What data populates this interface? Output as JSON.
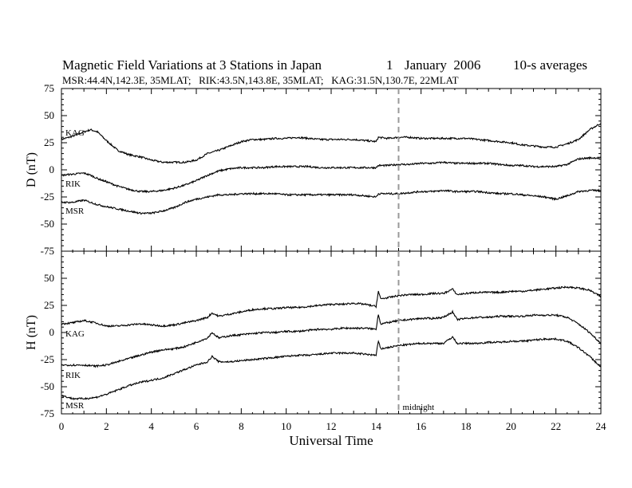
{
  "header": {
    "title": "Magnetic Field Variations at 3 Stations in Japan",
    "date_day": "1",
    "date_month_year": "January  2006",
    "averaging": "10-s averages",
    "stations_line": "MSR:44.4N,142.3E, 35MLAT;   RIK:43.5N,143.8E, 35MLAT;   KAG:31.5N,130.7E, 22MLAT"
  },
  "chart_data": [
    {
      "type": "line",
      "panel": "top",
      "ylabel": "D (nT)",
      "xlim": [
        0,
        24
      ],
      "ylim": [
        -75,
        75
      ],
      "yticks": [
        75,
        50,
        25,
        0,
        -25,
        -50,
        -75
      ],
      "x": [
        0,
        0.5,
        1,
        1.3,
        1.6,
        2,
        2.5,
        3,
        3.5,
        4,
        4.5,
        5,
        5.5,
        6,
        6.5,
        7,
        7.5,
        8,
        8.5,
        9,
        9.5,
        10,
        10.5,
        11,
        11.5,
        12,
        12.5,
        13,
        13.5,
        14,
        14.1,
        14.5,
        15,
        15.5,
        16,
        16.5,
        17,
        17.5,
        18,
        18.5,
        19,
        19.5,
        20,
        20.5,
        21,
        21.5,
        22,
        22.5,
        23,
        23.5,
        24
      ],
      "series": [
        {
          "name": "KAG",
          "values": [
            28,
            31,
            35,
            37,
            35,
            27,
            18,
            14,
            12,
            9,
            7,
            7,
            7,
            9,
            15,
            18,
            22,
            26,
            28,
            28,
            29,
            29,
            30,
            29,
            28,
            28,
            28,
            28,
            27,
            26,
            30,
            29,
            30,
            30,
            29,
            29,
            29,
            29,
            29,
            28,
            27,
            26,
            25,
            23,
            22,
            21,
            21,
            24,
            28,
            37,
            43
          ]
        },
        {
          "name": "RIK",
          "values": [
            -5,
            -4,
            -3,
            -5,
            -8,
            -11,
            -15,
            -18,
            -20,
            -20,
            -19,
            -17,
            -14,
            -10,
            -5,
            -1,
            1,
            2,
            2,
            2,
            3,
            3,
            3,
            3,
            2,
            2,
            2,
            2,
            2,
            2,
            4,
            4,
            5,
            5,
            6,
            6,
            7,
            6,
            6,
            6,
            6,
            5,
            4,
            4,
            3,
            3,
            3,
            5,
            10,
            11,
            11
          ]
        },
        {
          "name": "MSR",
          "values": [
            -30,
            -30,
            -28,
            -30,
            -32,
            -34,
            -36,
            -38,
            -40,
            -40,
            -38,
            -35,
            -30,
            -27,
            -25,
            -23,
            -23,
            -22,
            -22,
            -22,
            -22,
            -23,
            -23,
            -23,
            -23,
            -23,
            -23,
            -23,
            -24,
            -25,
            -22,
            -22,
            -22,
            -21,
            -20,
            -20,
            -19,
            -20,
            -20,
            -20,
            -21,
            -22,
            -22,
            -23,
            -24,
            -25,
            -27,
            -24,
            -20,
            -19,
            -19
          ]
        }
      ]
    },
    {
      "type": "line",
      "panel": "bottom",
      "ylabel": "H (nT)",
      "xlabel": "Universal Time",
      "xlim": [
        0,
        24
      ],
      "ylim": [
        -75,
        75
      ],
      "yticks": [
        50,
        25,
        0,
        -25,
        -50,
        -75
      ],
      "xticks": [
        0,
        2,
        4,
        6,
        8,
        10,
        12,
        14,
        16,
        18,
        20,
        22,
        24
      ],
      "x": [
        0,
        0.5,
        1,
        1.5,
        2,
        2.5,
        3,
        3.5,
        4,
        4.5,
        5,
        5.5,
        6,
        6.5,
        6.7,
        7,
        7.5,
        8,
        8.5,
        9,
        9.5,
        10,
        10.5,
        11,
        11.5,
        12,
        12.5,
        13,
        13.5,
        14,
        14.1,
        14.2,
        14.5,
        15,
        15.5,
        16,
        16.5,
        17,
        17.4,
        17.6,
        18,
        18.5,
        19,
        19.5,
        20,
        20.5,
        21,
        21.5,
        22,
        22.5,
        23,
        23.5,
        24
      ],
      "series": [
        {
          "name": "KAG",
          "values": [
            8,
            9,
            11,
            9,
            6,
            6,
            7,
            8,
            7,
            6,
            7,
            9,
            11,
            14,
            18,
            15,
            17,
            19,
            21,
            22,
            22,
            23,
            23,
            24,
            25,
            26,
            26,
            27,
            26,
            24,
            38,
            31,
            32,
            34,
            35,
            35,
            36,
            36,
            40,
            35,
            36,
            37,
            37,
            37,
            38,
            38,
            39,
            40,
            41,
            42,
            41,
            39,
            33
          ]
        },
        {
          "name": "RIK",
          "values": [
            -30,
            -30,
            -30,
            -31,
            -30,
            -27,
            -24,
            -21,
            -18,
            -16,
            -15,
            -13,
            -9,
            -5,
            0,
            -5,
            -3,
            -2,
            -1,
            0,
            0,
            1,
            1,
            2,
            3,
            3,
            4,
            4,
            4,
            3,
            17,
            8,
            9,
            11,
            12,
            13,
            13,
            14,
            19,
            12,
            13,
            14,
            14,
            15,
            15,
            15,
            16,
            16,
            16,
            14,
            8,
            0,
            -10
          ]
        },
        {
          "name": "MSR",
          "values": [
            -58,
            -61,
            -61,
            -60,
            -57,
            -53,
            -49,
            -46,
            -44,
            -42,
            -38,
            -34,
            -30,
            -27,
            -22,
            -27,
            -27,
            -26,
            -25,
            -24,
            -23,
            -22,
            -21,
            -21,
            -20,
            -19,
            -19,
            -19,
            -20,
            -21,
            -8,
            -15,
            -14,
            -12,
            -11,
            -10,
            -10,
            -10,
            -4,
            -10,
            -10,
            -10,
            -9,
            -9,
            -8,
            -8,
            -7,
            -6,
            -6,
            -8,
            -14,
            -22,
            -32
          ]
        }
      ]
    }
  ],
  "midnight_marker": {
    "x": 15,
    "label": "midnight"
  }
}
